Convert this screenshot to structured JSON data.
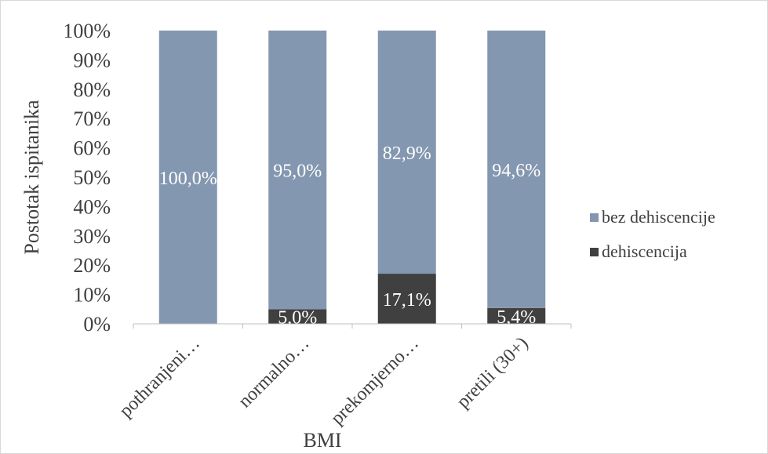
{
  "chart_data": {
    "type": "bar",
    "stacked": true,
    "percent_stacked": true,
    "categories": [
      "pothranjeni…",
      "normalno…",
      "prekomjerno…",
      "pretili (30+)"
    ],
    "series": [
      {
        "name": "dehiscencija",
        "color": "#404040",
        "values": [
          0,
          5.0,
          17.1,
          5.4
        ],
        "labels": [
          "",
          "5,0%",
          "17,1%",
          "5,4%"
        ]
      },
      {
        "name": "bez dehiscencije",
        "color": "#8497b0",
        "values": [
          100.0,
          95.0,
          82.9,
          94.6
        ],
        "labels": [
          "100,0%",
          "95,0%",
          "82,9%",
          "94,6%"
        ]
      }
    ],
    "title": "",
    "xlabel": "BMI",
    "ylabel": "Postotak ispitanika",
    "ylim": [
      0,
      100
    ],
    "yticks": [
      "0%",
      "10%",
      "20%",
      "30%",
      "40%",
      "50%",
      "60%",
      "70%",
      "80%",
      "90%",
      "100%"
    ],
    "grid": false,
    "legend_position": "right",
    "legend_order": [
      "bez dehiscencije",
      "dehiscencija"
    ]
  }
}
